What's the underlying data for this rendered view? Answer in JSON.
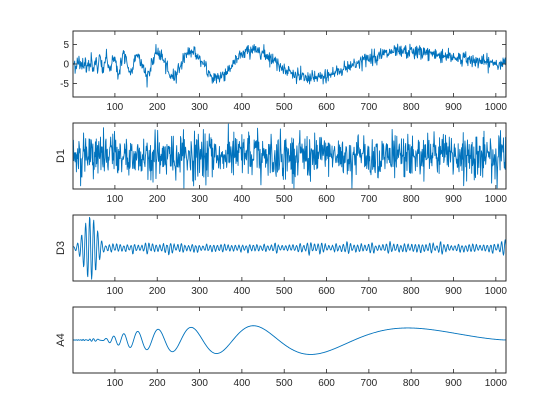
{
  "chart_data": [
    {
      "type": "line",
      "ylabel": "",
      "xlim": [
        1,
        1024
      ],
      "ylim": [
        -8.5,
        8.5
      ],
      "xticks": [
        100,
        200,
        300,
        400,
        500,
        600,
        700,
        800,
        900,
        1000
      ],
      "yticks": [
        -5,
        0,
        5
      ],
      "color": "#0072BD",
      "signal": "noisy-doppler",
      "series": [
        {
          "values": []
        }
      ]
    },
    {
      "type": "line",
      "ylabel": "D1",
      "xlim": [
        1,
        1024
      ],
      "ylim": [
        -1.6,
        1.6
      ],
      "xticks": [
        100,
        200,
        300,
        400,
        500,
        600,
        700,
        800,
        900,
        1000
      ],
      "yticks": [],
      "color": "#0072BD",
      "signal": "detail-level-1",
      "series": [
        {
          "values": []
        }
      ]
    },
    {
      "type": "line",
      "ylabel": "D3",
      "xlim": [
        1,
        1024
      ],
      "ylim": [
        -1.5,
        1.5
      ],
      "xticks": [
        100,
        200,
        300,
        400,
        500,
        600,
        700,
        800,
        900,
        1000
      ],
      "yticks": [],
      "color": "#0072BD",
      "signal": "detail-level-3",
      "series": [
        {
          "values": []
        }
      ]
    },
    {
      "type": "line",
      "ylabel": "A4",
      "xlim": [
        1,
        1024
      ],
      "ylim": [
        -8.5,
        8.5
      ],
      "xticks": [
        100,
        200,
        300,
        400,
        500,
        600,
        700,
        800,
        900,
        1000
      ],
      "yticks": [],
      "color": "#0072BD",
      "signal": "approximation-level-4",
      "series": [
        {
          "values": []
        }
      ]
    }
  ]
}
